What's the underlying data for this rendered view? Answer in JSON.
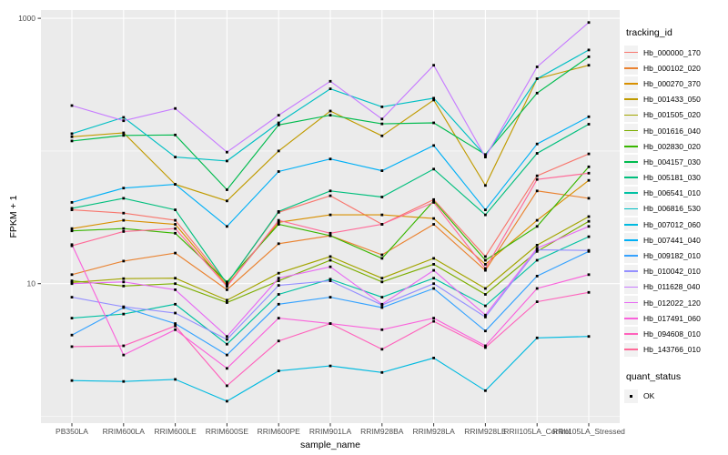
{
  "figure": {
    "background": "#FFFFFF",
    "panel_bg": "#EBEBEB",
    "grid_color": "#FFFFFF",
    "tick_color": "#333333",
    "tick_label_color": "#4D4D4D",
    "point_color": "#000000"
  },
  "chart_data": {
    "type": "line",
    "title": "",
    "xlabel": "sample_name",
    "ylabel": "FPKM + 1",
    "y_scale": "log10",
    "y_axis_tick_values": [
      10,
      1000
    ],
    "y_minor_gridline_values": [
      1,
      100
    ],
    "y_range_log10": [
      -0.05,
      3.06
    ],
    "grid": true,
    "legend_position": "right",
    "point_shape": "filled-square",
    "categories": [
      "PB350LA",
      "RRIM600LA",
      "RRIM600LE",
      "RRIM600SE",
      "RRIM600PE",
      "RRIM901LA",
      "RRIM928BA",
      "RRIM928LA",
      "RRIM928LE",
      "RRII105LA_Control",
      "RRII105LA_Stressed"
    ],
    "legend": {
      "title": "tracking_id"
    },
    "legend2": {
      "title": "quant_status",
      "items": [
        {
          "label": "OK",
          "shape": "square",
          "color": "#000000"
        }
      ]
    },
    "series": [
      {
        "name": "Hb_000000_170",
        "color": "#F8766D",
        "values": [
          36,
          34,
          30,
          10,
          34.5,
          46,
          28,
          43,
          16,
          65,
          95
        ]
      },
      {
        "name": "Hb_000102_020",
        "color": "#EA8331",
        "values": [
          11.7,
          14.8,
          17,
          9,
          20,
          23,
          16.5,
          28,
          12.6,
          50,
          44
        ]
      },
      {
        "name": "Hb_000270_370",
        "color": "#D89000",
        "values": [
          26,
          30,
          28,
          9.7,
          29,
          33,
          33,
          31,
          14,
          30,
          60
        ]
      },
      {
        "name": "Hb_001433_050",
        "color": "#C09B00",
        "values": [
          128,
          137,
          56,
          42,
          100,
          200,
          130,
          242,
          55,
          350,
          443
        ]
      },
      {
        "name": "Hb_001505_020",
        "color": "#A3A500",
        "values": [
          10.2,
          10.9,
          11,
          7.5,
          12,
          16,
          11,
          15.5,
          9.2,
          19.5,
          32
        ]
      },
      {
        "name": "Hb_001616_040",
        "color": "#7CAE00",
        "values": [
          10.5,
          9.6,
          10,
          7.2,
          10.5,
          15,
          10.3,
          14,
          8.3,
          17.5,
          29.5
        ]
      },
      {
        "name": "Hb_002830_020",
        "color": "#39B600",
        "values": [
          25,
          26,
          24,
          10.3,
          28,
          23,
          15.5,
          42,
          15,
          27,
          76
        ]
      },
      {
        "name": "Hb_004157_030",
        "color": "#00BB4E",
        "values": [
          119,
          131,
          132,
          51,
          157,
          186,
          160,
          163,
          94,
          273,
          513
        ]
      },
      {
        "name": "Hb_005181_030",
        "color": "#00BF7D",
        "values": [
          37,
          44,
          36,
          10,
          35,
          50,
          45,
          73,
          33,
          96,
          159
        ]
      },
      {
        "name": "Hb_006541_010",
        "color": "#00C1A3",
        "values": [
          5.5,
          5.9,
          7,
          3.5,
          8.3,
          10.8,
          7.9,
          11,
          6.8,
          15,
          22.6
        ]
      },
      {
        "name": "Hb_006816_530",
        "color": "#00BFC4",
        "values": [
          135,
          179,
          90,
          84,
          163,
          294,
          215,
          250,
          92,
          350,
          577
        ]
      },
      {
        "name": "Hb_007012_060",
        "color": "#00BAE0",
        "values": [
          1.86,
          1.83,
          1.9,
          1.3,
          2.2,
          2.4,
          2.14,
          2.75,
          1.56,
          3.9,
          4.0
        ]
      },
      {
        "name": "Hb_007441_040",
        "color": "#00B0F6",
        "values": [
          41,
          52.5,
          56,
          27,
          70,
          87,
          71,
          110,
          36,
          113,
          181
        ]
      },
      {
        "name": "Hb_009182_010",
        "color": "#35A2FF",
        "values": [
          4.1,
          6.6,
          5,
          2.9,
          7.0,
          7.9,
          6.6,
          9.2,
          4.4,
          11.4,
          17.5
        ]
      },
      {
        "name": "Hb_010042_010",
        "color": "#9590FF",
        "values": [
          7.9,
          6.7,
          6,
          3.8,
          9.7,
          10.5,
          6.9,
          10,
          5.6,
          18,
          17.8
        ]
      },
      {
        "name": "Hb_011628_040",
        "color": "#C77CFF",
        "values": [
          220,
          169,
          209,
          98,
          186,
          335,
          174,
          443,
          90,
          430,
          930
        ]
      },
      {
        "name": "Hb_012022_120",
        "color": "#E76BF3",
        "values": [
          10,
          10.3,
          9,
          4,
          11,
          13.4,
          7,
          12.6,
          5.8,
          18.5,
          27
        ]
      },
      {
        "name": "Hb_017491_060",
        "color": "#FA62DB",
        "values": [
          19.7,
          2.9,
          4.5,
          2.3,
          5.5,
          5,
          4.5,
          5.5,
          3.4,
          9.2,
          11.7
        ]
      },
      {
        "name": "Hb_094608_010",
        "color": "#FF62BC",
        "values": [
          3.35,
          3.4,
          4.8,
          1.7,
          3.7,
          5,
          3.2,
          5.2,
          3.3,
          7.3,
          8.6
        ]
      },
      {
        "name": "Hb_143766_010",
        "color": "#FF6A98",
        "values": [
          19.3,
          24.7,
          26,
          9.5,
          30,
          24,
          28,
          41,
          13,
          61,
          68
        ]
      }
    ]
  }
}
